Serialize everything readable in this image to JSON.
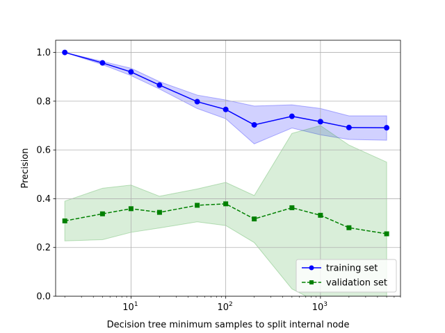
{
  "chart_data": {
    "type": "line",
    "title": "",
    "xlabel": "Decision tree minimum samples to split internal node",
    "ylabel": "Precision",
    "x_scale": "log",
    "xlim": [
      1.6,
      7000
    ],
    "ylim": [
      0.0,
      1.05
    ],
    "grid": true,
    "legend_position": "lower-right",
    "x_ticks": [
      {
        "value": 10,
        "base": "10",
        "exp": "1"
      },
      {
        "value": 100,
        "base": "10",
        "exp": "2"
      },
      {
        "value": 1000,
        "base": "10",
        "exp": "3"
      }
    ],
    "y_ticks": [
      {
        "value": 0.0,
        "label": "0.0"
      },
      {
        "value": 0.2,
        "label": "0.2"
      },
      {
        "value": 0.4,
        "label": "0.4"
      },
      {
        "value": 0.6,
        "label": "0.6"
      },
      {
        "value": 0.8,
        "label": "0.8"
      },
      {
        "value": 1.0,
        "label": "1.0"
      }
    ],
    "x": [
      2,
      5,
      10,
      20,
      50,
      100,
      200,
      500,
      1000,
      2000,
      5000
    ],
    "series": [
      {
        "name": "training set",
        "color": "#0000ff",
        "band_color": "#0000ff",
        "linestyle": "solid",
        "marker": "circle",
        "values": [
          1.0,
          0.957,
          0.92,
          0.866,
          0.798,
          0.766,
          0.703,
          0.738,
          0.716,
          0.692,
          0.691
        ],
        "lower": [
          1.0,
          0.95,
          0.905,
          0.85,
          0.77,
          0.728,
          0.625,
          0.69,
          0.662,
          0.643,
          0.64
        ],
        "upper": [
          1.0,
          0.963,
          0.935,
          0.88,
          0.825,
          0.805,
          0.78,
          0.785,
          0.77,
          0.74,
          0.74
        ]
      },
      {
        "name": "validation set",
        "color": "#008000",
        "band_color": "#2ca02c",
        "linestyle": "dashed",
        "marker": "square",
        "values": [
          0.309,
          0.338,
          0.359,
          0.344,
          0.373,
          0.379,
          0.317,
          0.363,
          0.332,
          0.281,
          0.256
        ],
        "lower": [
          0.227,
          0.232,
          0.262,
          0.28,
          0.305,
          0.29,
          0.22,
          0.03,
          -0.03,
          -0.03,
          -0.03
        ],
        "upper": [
          0.39,
          0.443,
          0.456,
          0.41,
          0.44,
          0.467,
          0.413,
          0.668,
          0.7,
          0.62,
          0.55
        ]
      }
    ]
  }
}
